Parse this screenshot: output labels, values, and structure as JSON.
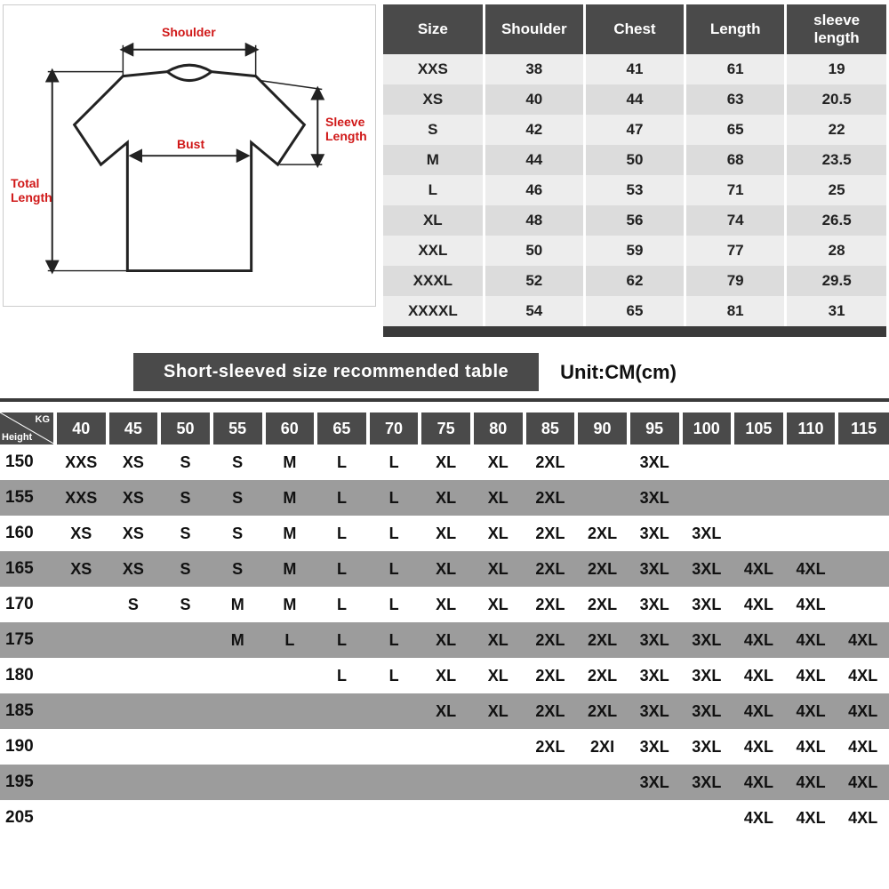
{
  "diagram": {
    "labels": {
      "shoulder": "Shoulder",
      "bust": "Bust",
      "sleeve_length": "Sleeve\nLength",
      "total_length": "Total\nLength"
    },
    "label_color": "#d01818",
    "shirt_fill": "#ffffff",
    "shirt_outline": "#222222"
  },
  "size_table": {
    "header_bg": "#4a4a4a",
    "header_fg": "#ffffff",
    "row_bg_odd": "#ededed",
    "row_bg_even": "#dcdcdc",
    "footer_bg": "#3a3a3a",
    "font_size": 17,
    "columns": [
      "Size",
      "Shoulder",
      "Chest",
      "Length",
      "sleeve length"
    ],
    "rows": [
      [
        "XXS",
        "38",
        "41",
        "61",
        "19"
      ],
      [
        "XS",
        "40",
        "44",
        "63",
        "20.5"
      ],
      [
        "S",
        "42",
        "47",
        "65",
        "22"
      ],
      [
        "M",
        "44",
        "50",
        "68",
        "23.5"
      ],
      [
        "L",
        "46",
        "53",
        "71",
        "25"
      ],
      [
        "XL",
        "48",
        "56",
        "74",
        "26.5"
      ],
      [
        "XXL",
        "50",
        "59",
        "77",
        "28"
      ],
      [
        "XXXL",
        "52",
        "62",
        "79",
        "29.5"
      ],
      [
        "XXXXL",
        "54",
        "65",
        "81",
        "31"
      ]
    ]
  },
  "banner": {
    "text": "Short-sleeved size recommended table",
    "bg": "#4a4a4a",
    "fg": "#ffffff",
    "font_size": 20
  },
  "unit": {
    "text": "Unit:CM(cm)",
    "font_size": 22
  },
  "divider_color": "#3a3a3a",
  "rec_table": {
    "header_bg": "#4a4a4a",
    "header_fg": "#ffffff",
    "row_bg_odd": "#ffffff",
    "row_bg_even": "#9c9c9c",
    "font_size": 18,
    "corner": {
      "kg": "KG",
      "height": "Height"
    },
    "kg_columns": [
      "40",
      "45",
      "50",
      "55",
      "60",
      "65",
      "70",
      "75",
      "80",
      "85",
      "90",
      "95",
      "100",
      "105",
      "110",
      "115"
    ],
    "heights": [
      "150",
      "155",
      "160",
      "165",
      "170",
      "175",
      "180",
      "185",
      "190",
      "195",
      "205"
    ],
    "grid": [
      [
        "XXS",
        "XS",
        "S",
        "S",
        "M",
        "L",
        "L",
        "XL",
        "XL",
        "2XL",
        "",
        "3XL",
        "",
        "",
        "",
        ""
      ],
      [
        "XXS",
        "XS",
        "S",
        "S",
        "M",
        "L",
        "L",
        "XL",
        "XL",
        "2XL",
        "",
        "3XL",
        "",
        "",
        "",
        ""
      ],
      [
        "XS",
        "XS",
        "S",
        "S",
        "M",
        "L",
        "L",
        "XL",
        "XL",
        "2XL",
        "2XL",
        "3XL",
        "3XL",
        "",
        "",
        ""
      ],
      [
        "XS",
        "XS",
        "S",
        "S",
        "M",
        "L",
        "L",
        "XL",
        "XL",
        "2XL",
        "2XL",
        "3XL",
        "3XL",
        "4XL",
        "4XL",
        ""
      ],
      [
        "",
        "S",
        "S",
        "M",
        "M",
        "L",
        "L",
        "XL",
        "XL",
        "2XL",
        "2XL",
        "3XL",
        "3XL",
        "4XL",
        "4XL",
        ""
      ],
      [
        "",
        "",
        "",
        "M",
        "L",
        "L",
        "L",
        "XL",
        "XL",
        "2XL",
        "2XL",
        "3XL",
        "3XL",
        "4XL",
        "4XL",
        "4XL"
      ],
      [
        "",
        "",
        "",
        "",
        "",
        "L",
        "L",
        "XL",
        "XL",
        "2XL",
        "2XL",
        "3XL",
        "3XL",
        "4XL",
        "4XL",
        "4XL"
      ],
      [
        "",
        "",
        "",
        "",
        "",
        "",
        "",
        "XL",
        "XL",
        "2XL",
        "2XL",
        "3XL",
        "3XL",
        "4XL",
        "4XL",
        "4XL"
      ],
      [
        "",
        "",
        "",
        "",
        "",
        "",
        "",
        "",
        "",
        "2XL",
        "2XI",
        "3XL",
        "3XL",
        "4XL",
        "4XL",
        "4XL"
      ],
      [
        "",
        "",
        "",
        "",
        "",
        "",
        "",
        "",
        "",
        "",
        "",
        "3XL",
        "3XL",
        "4XL",
        "4XL",
        "4XL"
      ],
      [
        "",
        "",
        "",
        "",
        "",
        "",
        "",
        "",
        "",
        "",
        "",
        "",
        "",
        "4XL",
        "4XL",
        "4XL"
      ]
    ]
  }
}
